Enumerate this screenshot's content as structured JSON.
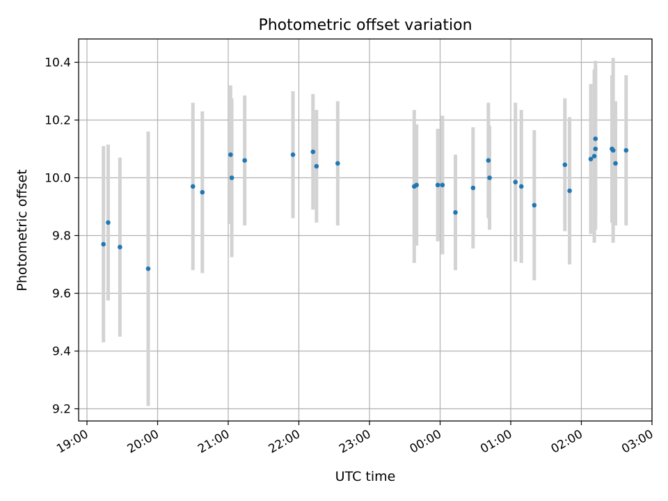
{
  "chart_data": {
    "type": "scatter",
    "title": "Photometric offset variation",
    "xlabel": "UTC time",
    "ylabel": "Photometric offset",
    "xlim": [
      "19:00",
      "03:00"
    ],
    "ylim": [
      9.16,
      10.48
    ],
    "x_ticks": [
      "19:00",
      "20:00",
      "21:00",
      "22:00",
      "23:00",
      "00:00",
      "01:00",
      "02:00",
      "03:00"
    ],
    "y_ticks": [
      "9.2",
      "9.4",
      "9.6",
      "9.8",
      "10.0",
      "10.2",
      "10.4"
    ],
    "grid": true,
    "colors": {
      "point": "#1f77b4",
      "errorbar": "#d3d3d3",
      "grid": "#b0b0b0"
    },
    "points": [
      {
        "x": "19:14",
        "y": 9.77,
        "yerr": 0.34
      },
      {
        "x": "19:18",
        "y": 9.845,
        "yerr": 0.27
      },
      {
        "x": "19:28",
        "y": 9.76,
        "yerr": 0.31
      },
      {
        "x": "19:52",
        "y": 9.685,
        "yerr": 0.475
      },
      {
        "x": "20:30",
        "y": 9.97,
        "yerr": 0.29
      },
      {
        "x": "20:38",
        "y": 9.95,
        "yerr": 0.28
      },
      {
        "x": "21:02",
        "y": 10.08,
        "yerr": 0.24
      },
      {
        "x": "21:03",
        "y": 10.0,
        "yerr": 0.275
      },
      {
        "x": "21:14",
        "y": 10.06,
        "yerr": 0.225
      },
      {
        "x": "21:55",
        "y": 10.08,
        "yerr": 0.22
      },
      {
        "x": "22:12",
        "y": 10.09,
        "yerr": 0.2
      },
      {
        "x": "22:15",
        "y": 10.04,
        "yerr": 0.195
      },
      {
        "x": "22:33",
        "y": 10.05,
        "yerr": 0.215
      },
      {
        "x": "23:38",
        "y": 9.97,
        "yerr": 0.265
      },
      {
        "x": "23:40",
        "y": 9.975,
        "yerr": 0.21
      },
      {
        "x": "23:58",
        "y": 9.975,
        "yerr": 0.195
      },
      {
        "x": "00:02",
        "y": 9.975,
        "yerr": 0.24
      },
      {
        "x": "00:13",
        "y": 9.88,
        "yerr": 0.2
      },
      {
        "x": "00:28",
        "y": 9.965,
        "yerr": 0.21
      },
      {
        "x": "00:41",
        "y": 10.06,
        "yerr": 0.2
      },
      {
        "x": "00:42",
        "y": 10.0,
        "yerr": 0.18
      },
      {
        "x": "01:04",
        "y": 9.985,
        "yerr": 0.275
      },
      {
        "x": "01:09",
        "y": 9.97,
        "yerr": 0.265
      },
      {
        "x": "01:20",
        "y": 9.905,
        "yerr": 0.26
      },
      {
        "x": "01:46",
        "y": 10.045,
        "yerr": 0.23
      },
      {
        "x": "01:50",
        "y": 9.955,
        "yerr": 0.255
      },
      {
        "x": "02:08",
        "y": 10.065,
        "yerr": 0.26
      },
      {
        "x": "02:11",
        "y": 10.075,
        "yerr": 0.3
      },
      {
        "x": "02:12",
        "y": 10.1,
        "yerr": 0.28
      },
      {
        "x": "02:12",
        "y": 10.135,
        "yerr": 0.27
      },
      {
        "x": "02:26",
        "y": 10.1,
        "yerr": 0.255
      },
      {
        "x": "02:27",
        "y": 10.095,
        "yerr": 0.32
      },
      {
        "x": "02:29",
        "y": 10.05,
        "yerr": 0.215
      },
      {
        "x": "02:38",
        "y": 10.095,
        "yerr": 0.26
      }
    ]
  }
}
